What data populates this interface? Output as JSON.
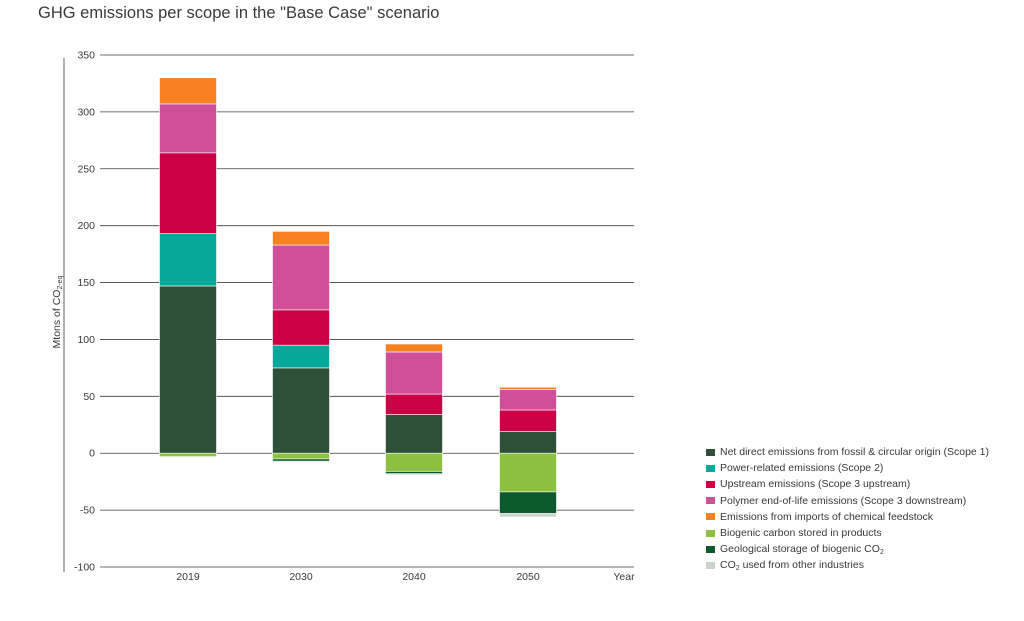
{
  "chart_data": {
    "type": "bar",
    "stacked": true,
    "title": "GHG emissions per scope in the \"Base Case\" scenario",
    "ylabel": "Mtons of CO",
    "ylabel_sub": "2-eq",
    "xlabel": "Year",
    "ylim": [
      -100,
      350
    ],
    "yticks": [
      -100,
      -50,
      0,
      50,
      100,
      150,
      200,
      250,
      300,
      350
    ],
    "grid": true,
    "legend_position": "bottom-right",
    "categories": [
      "2019",
      "2030",
      "2040",
      "2050"
    ],
    "series": [
      {
        "name": "Net direct emissions from fossil & circular origin (Scope 1)",
        "color": "#2f5038",
        "values": [
          147,
          75,
          34,
          19
        ]
      },
      {
        "name": "Power-related emissions (Scope 2)",
        "color": "#06a89a",
        "values": [
          46,
          20,
          0,
          0
        ]
      },
      {
        "name": "Upstream emissions (Scope 3 upstream)",
        "color": "#cc0044",
        "values": [
          71,
          31,
          18,
          19
        ]
      },
      {
        "name": "Polymer end-of-life emissions (Scope 3 downstream)",
        "color": "#cf4f98",
        "values": [
          43,
          57,
          37,
          18
        ]
      },
      {
        "name": "Emissions from imports of chemical feedstock",
        "color": "#f5821f",
        "values": [
          23,
          12,
          7,
          2
        ]
      },
      {
        "name": "Biogenic carbon stored in products",
        "color": "#8dc13f",
        "values": [
          -3,
          -5,
          -16,
          -34
        ]
      },
      {
        "name": "Geological storage of biogenic CO",
        "name_sub": "2",
        "color": "#0c5a2e",
        "values": [
          0,
          -2,
          -2,
          -19
        ]
      },
      {
        "name": "CO",
        "name_sub": "2",
        "name_rest": " used from other industries",
        "color": "#c9d3c9",
        "values": [
          0,
          -1,
          -1,
          -3
        ]
      }
    ]
  }
}
